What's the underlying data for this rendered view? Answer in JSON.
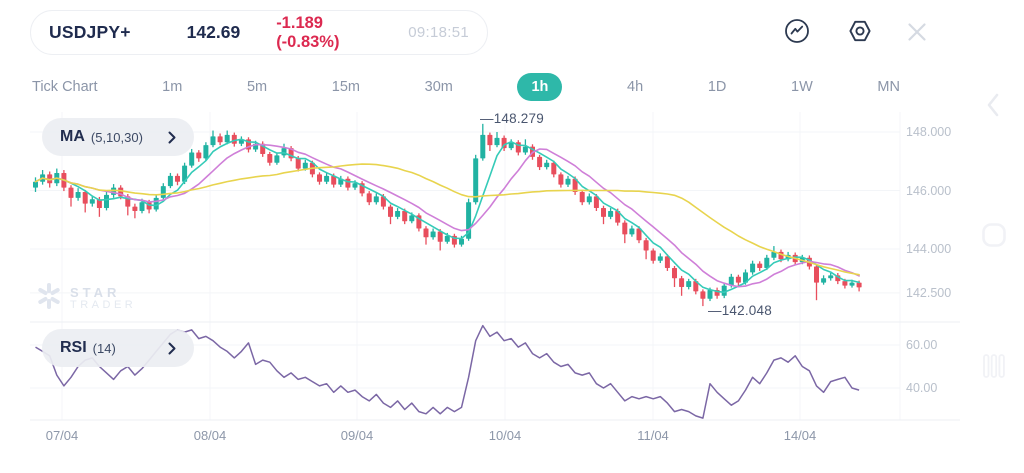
{
  "header": {
    "symbol": "USDJPY+",
    "price": "142.69",
    "change": "-1.189 (-0.83%)",
    "time": "09:18:51"
  },
  "toolbar": {
    "tabs": [
      "Tick Chart",
      "1m",
      "5m",
      "15m",
      "30m",
      "1h",
      "4h",
      "1D",
      "1W",
      "MN"
    ],
    "active": "1h"
  },
  "indicators": {
    "ma": {
      "name": "MA",
      "params": "(5,10,30)"
    },
    "rsi": {
      "name": "RSI",
      "params": "(14)"
    }
  },
  "watermark": {
    "line1": "STAR",
    "line2": "TRADER"
  },
  "colors": {
    "accent_teal": "#2eb8a9",
    "navy_text": "#1f2b4e",
    "change_red": "#dc2950",
    "candle_up": "#21b2a2",
    "candle_down": "#e84e5d",
    "ma5": "#35cbb8",
    "ma10": "#cf7fd8",
    "ma30": "#e8d44e",
    "rsi_line": "#7b67a5"
  },
  "chart_data": [
    {
      "type": "candlestick",
      "symbol": "USDJPY",
      "timeframe": "1h",
      "ylim": [
        141.5,
        148.75
      ],
      "grid": true,
      "y_ticks": [
        {
          "label": "148.000",
          "value": 148.0
        },
        {
          "label": "146.000",
          "value": 146.0
        },
        {
          "label": "144.000",
          "value": 144.0
        },
        {
          "label": "142.500",
          "value": 142.5
        }
      ],
      "day_labels": [
        "07/04",
        "08/04",
        "09/04",
        "10/04",
        "11/04",
        "14/04"
      ],
      "annotations": {
        "high": {
          "label": "—148.279",
          "value": 148.279
        },
        "low": {
          "label": "—142.048",
          "value": 142.048
        }
      },
      "ma_series": [
        {
          "name": "MA5",
          "period": 5,
          "color": "#35cbb8"
        },
        {
          "name": "MA10",
          "period": 10,
          "color": "#cf7fd8"
        },
        {
          "name": "MA30",
          "period": 30,
          "color": "#e8d44e"
        }
      ],
      "ohlc": [
        [
          146.1,
          146.45,
          145.95,
          146.3
        ],
        [
          146.3,
          146.7,
          146.2,
          146.55
        ],
        [
          146.55,
          146.65,
          146.1,
          146.25
        ],
        [
          146.25,
          146.75,
          146.15,
          146.6
        ],
        [
          146.6,
          146.7,
          145.98,
          146.1
        ],
        [
          146.1,
          146.18,
          145.45,
          145.75
        ],
        [
          145.75,
          146.08,
          145.65,
          145.95
        ],
        [
          145.95,
          146.02,
          145.25,
          145.55
        ],
        [
          145.55,
          145.82,
          145.45,
          145.7
        ],
        [
          145.7,
          145.78,
          145.1,
          145.4
        ],
        [
          145.4,
          145.95,
          145.32,
          145.85
        ],
        [
          145.85,
          146.22,
          145.75,
          146.1
        ],
        [
          146.1,
          146.18,
          145.7,
          145.8
        ],
        [
          145.8,
          145.88,
          145.15,
          145.45
        ],
        [
          145.45,
          145.55,
          145.05,
          145.3
        ],
        [
          145.3,
          145.72,
          145.22,
          145.6
        ],
        [
          145.6,
          145.68,
          145.22,
          145.35
        ],
        [
          145.35,
          145.85,
          145.28,
          145.75
        ],
        [
          145.75,
          146.25,
          145.68,
          146.15
        ],
        [
          146.15,
          146.6,
          146.08,
          146.5
        ],
        [
          146.5,
          146.58,
          146.18,
          146.3
        ],
        [
          146.3,
          146.95,
          146.22,
          146.85
        ],
        [
          146.85,
          147.42,
          146.78,
          147.3
        ],
        [
          147.3,
          147.38,
          146.98,
          147.1
        ],
        [
          147.1,
          147.65,
          147.02,
          147.55
        ],
        [
          147.55,
          148.05,
          147.48,
          147.85
        ],
        [
          147.85,
          147.95,
          147.55,
          147.65
        ],
        [
          147.65,
          148.05,
          147.58,
          147.9
        ],
        [
          147.9,
          147.98,
          147.5,
          147.6
        ],
        [
          147.6,
          147.85,
          147.52,
          147.75
        ],
        [
          147.75,
          147.82,
          147.3,
          147.4
        ],
        [
          147.4,
          147.7,
          147.32,
          147.6
        ],
        [
          147.6,
          147.68,
          147.15,
          147.25
        ],
        [
          147.25,
          147.32,
          146.85,
          146.95
        ],
        [
          146.95,
          147.28,
          146.88,
          147.2
        ],
        [
          147.2,
          147.6,
          147.12,
          147.45
        ],
        [
          147.45,
          147.52,
          147.0,
          147.1
        ],
        [
          147.1,
          147.18,
          146.65,
          146.75
        ],
        [
          146.75,
          147.05,
          146.68,
          146.95
        ],
        [
          146.95,
          147.02,
          146.45,
          146.55
        ],
        [
          146.55,
          146.62,
          146.2,
          146.3
        ],
        [
          146.3,
          146.6,
          146.22,
          146.5
        ],
        [
          146.5,
          146.58,
          146.1,
          146.2
        ],
        [
          146.2,
          146.5,
          146.12,
          146.4
        ],
        [
          146.4,
          146.48,
          146.0,
          146.1
        ],
        [
          146.1,
          146.35,
          146.02,
          146.25
        ],
        [
          146.25,
          146.32,
          145.8,
          145.9
        ],
        [
          145.9,
          145.98,
          145.5,
          145.6
        ],
        [
          145.6,
          145.9,
          145.52,
          145.8
        ],
        [
          145.8,
          145.88,
          145.35,
          145.45
        ],
        [
          145.45,
          145.52,
          144.85,
          145.1
        ],
        [
          145.1,
          145.4,
          145.02,
          145.3
        ],
        [
          145.3,
          145.38,
          144.85,
          144.95
        ],
        [
          144.95,
          145.25,
          144.88,
          145.15
        ],
        [
          145.15,
          145.22,
          144.6,
          144.7
        ],
        [
          144.7,
          144.78,
          144.15,
          144.4
        ],
        [
          144.4,
          144.7,
          144.32,
          144.6
        ],
        [
          144.6,
          144.68,
          143.95,
          144.25
        ],
        [
          144.25,
          144.55,
          144.18,
          144.45
        ],
        [
          144.45,
          144.52,
          144.05,
          144.15
        ],
        [
          144.15,
          144.45,
          144.08,
          144.35
        ],
        [
          144.35,
          145.72,
          144.28,
          145.6
        ],
        [
          145.6,
          147.22,
          145.52,
          147.1
        ],
        [
          147.1,
          148.279,
          147.02,
          147.9
        ],
        [
          147.9,
          147.98,
          147.35,
          147.55
        ],
        [
          147.55,
          148.0,
          147.48,
          147.8
        ],
        [
          147.8,
          147.88,
          147.35,
          147.45
        ],
        [
          147.45,
          147.75,
          147.38,
          147.65
        ],
        [
          147.65,
          147.72,
          147.2,
          147.3
        ],
        [
          147.3,
          147.75,
          147.22,
          147.5
        ],
        [
          147.5,
          147.58,
          147.05,
          147.15
        ],
        [
          147.15,
          147.22,
          146.7,
          146.8
        ],
        [
          146.8,
          147.05,
          146.72,
          146.95
        ],
        [
          146.95,
          147.02,
          146.45,
          146.55
        ],
        [
          146.55,
          146.62,
          146.1,
          146.2
        ],
        [
          146.2,
          146.5,
          146.12,
          146.4
        ],
        [
          146.4,
          146.48,
          145.85,
          145.95
        ],
        [
          145.95,
          146.02,
          145.5,
          145.6
        ],
        [
          145.6,
          145.9,
          145.52,
          145.8
        ],
        [
          145.8,
          145.88,
          145.3,
          145.4
        ],
        [
          145.4,
          145.48,
          144.85,
          145.1
        ],
        [
          145.1,
          145.4,
          145.02,
          145.3
        ],
        [
          145.3,
          145.38,
          144.8,
          144.9
        ],
        [
          144.9,
          144.98,
          144.2,
          144.5
        ],
        [
          144.5,
          144.8,
          144.42,
          144.7
        ],
        [
          144.7,
          144.78,
          144.2,
          144.3
        ],
        [
          144.3,
          144.38,
          143.65,
          143.95
        ],
        [
          143.95,
          144.02,
          143.5,
          143.6
        ],
        [
          143.6,
          143.85,
          143.52,
          143.75
        ],
        [
          143.75,
          143.82,
          143.25,
          143.35
        ],
        [
          143.35,
          143.42,
          142.7,
          143.0
        ],
        [
          143.0,
          143.08,
          142.4,
          142.7
        ],
        [
          142.7,
          142.98,
          142.62,
          142.9
        ],
        [
          142.9,
          142.98,
          142.45,
          142.55
        ],
        [
          142.55,
          142.62,
          142.048,
          142.3
        ],
        [
          142.3,
          142.68,
          142.22,
          142.6
        ],
        [
          142.6,
          142.68,
          142.3,
          142.4
        ],
        [
          142.4,
          142.85,
          142.32,
          142.75
        ],
        [
          142.75,
          143.15,
          142.68,
          143.05
        ],
        [
          143.05,
          143.12,
          142.75,
          142.85
        ],
        [
          142.85,
          143.3,
          142.78,
          143.2
        ],
        [
          143.2,
          143.6,
          143.12,
          143.5
        ],
        [
          143.5,
          143.58,
          143.25,
          143.35
        ],
        [
          143.35,
          143.8,
          143.28,
          143.7
        ],
        [
          143.7,
          144.1,
          143.62,
          143.9
        ],
        [
          143.9,
          143.98,
          143.55,
          143.65
        ],
        [
          143.65,
          143.9,
          143.58,
          143.8
        ],
        [
          143.8,
          143.88,
          143.45,
          143.55
        ],
        [
          143.55,
          143.8,
          143.48,
          143.7
        ],
        [
          143.7,
          143.78,
          143.3,
          143.4
        ],
        [
          143.4,
          143.48,
          142.25,
          142.85
        ],
        [
          142.85,
          143.1,
          142.78,
          143.0
        ],
        [
          143.0,
          143.18,
          142.92,
          143.1
        ],
        [
          143.1,
          143.18,
          142.8,
          142.9
        ],
        [
          142.9,
          142.98,
          142.65,
          142.75
        ],
        [
          142.75,
          142.95,
          142.68,
          142.85
        ],
        [
          142.85,
          142.92,
          142.55,
          142.69
        ]
      ]
    },
    {
      "type": "line",
      "name": "RSI (14)",
      "ylim": [
        25,
        71
      ],
      "y_ticks": [
        {
          "label": "60.00",
          "value": 60
        },
        {
          "label": "40.00",
          "value": 40
        }
      ],
      "values": [
        59,
        57,
        55,
        46,
        41,
        45,
        50,
        53,
        54,
        50,
        47,
        44,
        48,
        50,
        46,
        49,
        53,
        57,
        61,
        65,
        67,
        66,
        67,
        63,
        64,
        62,
        59,
        57,
        54,
        57,
        61,
        51,
        53,
        52,
        48,
        45,
        47,
        44,
        45,
        43,
        41,
        42,
        38,
        41,
        38,
        39,
        36,
        34,
        37,
        33,
        31,
        34,
        30,
        33,
        29,
        28,
        31,
        28,
        31,
        29,
        31,
        45,
        62,
        69,
        64,
        66,
        62,
        63,
        59,
        61,
        56,
        54,
        56,
        52,
        50,
        51,
        47,
        46,
        47,
        42,
        40,
        42,
        38,
        34,
        36,
        35,
        36,
        35,
        36,
        33,
        29,
        30,
        29,
        27,
        26,
        42,
        38,
        35,
        32,
        34,
        39,
        45,
        42,
        47,
        53,
        54,
        52,
        55,
        50,
        48,
        41,
        38,
        43,
        44,
        45,
        40,
        39
      ]
    }
  ]
}
